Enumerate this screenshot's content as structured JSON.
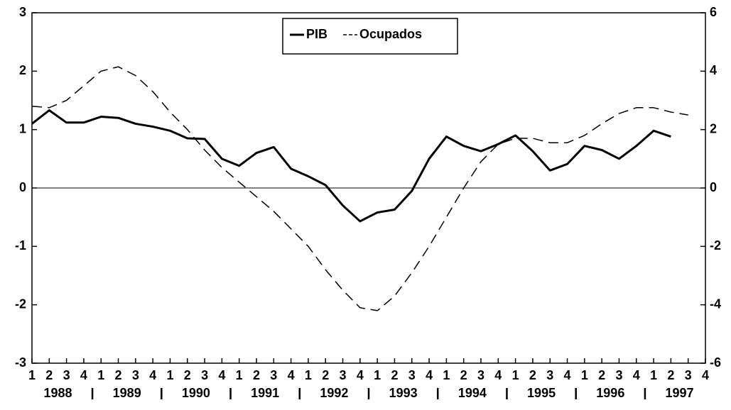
{
  "chart_data": {
    "type": "line",
    "categories": [
      "1",
      "2",
      "3",
      "4",
      "1",
      "2",
      "3",
      "4",
      "1",
      "2",
      "3",
      "4",
      "1",
      "2",
      "3",
      "4",
      "1",
      "2",
      "3",
      "4",
      "1",
      "2",
      "3",
      "4",
      "1",
      "2",
      "3",
      "4",
      "1",
      "2",
      "3",
      "4",
      "1",
      "2",
      "3",
      "4",
      "1",
      "2",
      "3",
      "4"
    ],
    "groups": [
      "1988",
      "1989",
      "1990",
      "1991",
      "1992",
      "1993",
      "1994",
      "1995",
      "1996",
      "1997"
    ],
    "series": [
      {
        "name": "PIB",
        "color": "#000000",
        "dash": false,
        "values": [
          1.1,
          1.33,
          1.12,
          1.12,
          1.22,
          1.2,
          1.1,
          1.05,
          0.98,
          0.85,
          0.84,
          0.5,
          0.38,
          0.6,
          0.7,
          0.33,
          0.2,
          0.05,
          -0.3,
          -0.57,
          -0.42,
          -0.37,
          -0.05,
          0.5,
          0.88,
          0.72,
          0.63,
          0.75,
          0.9,
          0.63,
          0.3,
          0.41,
          0.72,
          0.65,
          0.5,
          0.72,
          0.98,
          0.88,
          null,
          null
        ]
      },
      {
        "name": "Ocupados",
        "color": "#000000",
        "dash": true,
        "axis": "y2",
        "values": [
          2.8,
          2.75,
          3.0,
          3.5,
          4.0,
          4.15,
          3.85,
          3.3,
          2.6,
          2.0,
          1.3,
          0.7,
          0.2,
          -0.3,
          -0.8,
          -1.4,
          -2.0,
          -2.8,
          -3.5,
          -4.1,
          -4.2,
          -3.7,
          -2.9,
          -2.0,
          -1.0,
          0.0,
          0.9,
          1.5,
          1.7,
          1.7,
          1.55,
          1.55,
          1.8,
          2.2,
          2.55,
          2.75,
          2.75,
          2.6,
          2.5,
          null
        ]
      }
    ],
    "ylim": [
      -3,
      3
    ],
    "yticks": [
      -3,
      -2,
      -1,
      0,
      1,
      2,
      3
    ],
    "y2lim": [
      -6,
      6
    ],
    "y2ticks": [
      -6,
      -4,
      -2,
      0,
      2,
      4,
      6
    ],
    "zero_line": true,
    "legend": "top"
  }
}
